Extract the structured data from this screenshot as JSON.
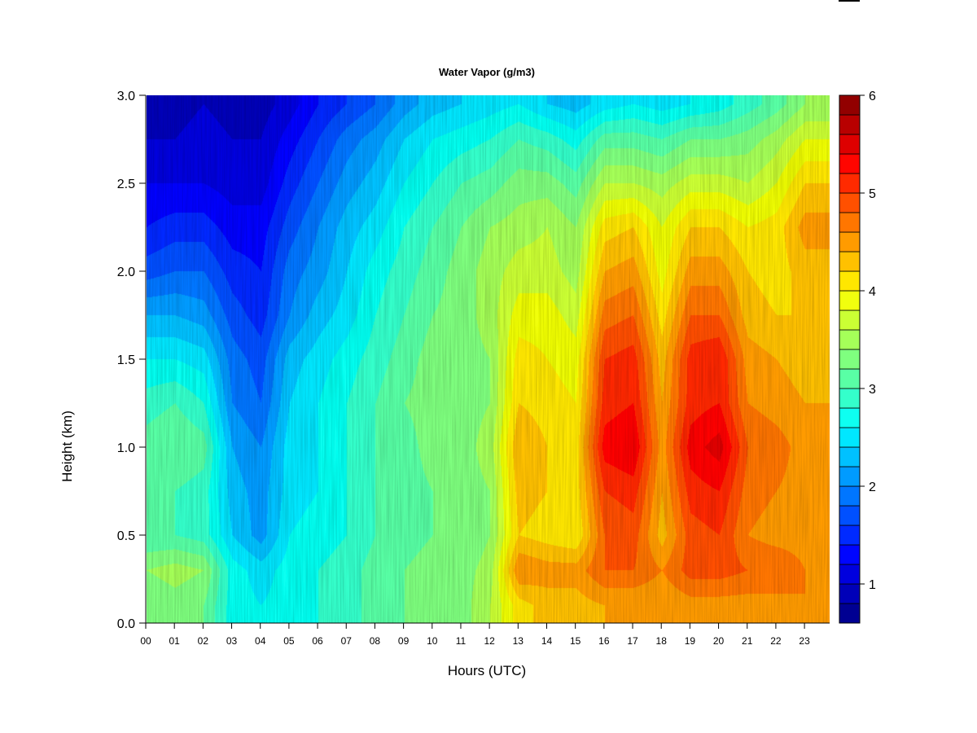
{
  "chart_data": {
    "type": "heatmap",
    "title": "Water Vapor (g/m3)",
    "xlabel": "Hours (UTC)",
    "ylabel": "Height (km)",
    "x_ticks": [
      "00",
      "01",
      "02",
      "03",
      "04",
      "05",
      "06",
      "07",
      "08",
      "09",
      "10",
      "11",
      "12",
      "13",
      "14",
      "15",
      "16",
      "17",
      "18",
      "19",
      "20",
      "21",
      "22",
      "23"
    ],
    "x_range": [
      0,
      23.85
    ],
    "y_ticks": [
      "0.0",
      "0.5",
      "1.0",
      "1.5",
      "2.0",
      "2.5",
      "3.0"
    ],
    "y_range": [
      0,
      3.0
    ],
    "colorbar": {
      "ticks": [
        "1",
        "2",
        "3",
        "4",
        "5",
        "6"
      ],
      "range": [
        0.6,
        6.0
      ],
      "levels": 27,
      "colormap": [
        "#00007f",
        "#0000ff",
        "#007fff",
        "#00ffff",
        "#7fff7f",
        "#ffff00",
        "#ff7f00",
        "#ff0000",
        "#7f0000"
      ]
    },
    "grid": false,
    "height_levels_km": [
      0.1,
      0.3,
      0.5,
      0.75,
      1.0,
      1.25,
      1.5,
      1.75,
      2.0,
      2.25,
      2.5,
      2.75,
      2.95
    ],
    "hours_utc": [
      0,
      1,
      2,
      3,
      4,
      5,
      6,
      7,
      8,
      9,
      10,
      11,
      12,
      13,
      14,
      15,
      16,
      17,
      18,
      19,
      20,
      21,
      22,
      23
    ],
    "water_vapor_g_m3": [
      [
        3.2,
        3.3,
        3.2,
        2.7,
        2.6,
        2.7,
        2.8,
        2.9,
        3.1,
        3.2,
        3.3,
        3.3,
        3.6,
        4.1,
        4.3,
        4.3,
        4.4,
        4.4,
        4.4,
        4.5,
        4.5,
        4.5,
        4.5,
        4.6
      ],
      [
        3.4,
        3.5,
        3.4,
        2.7,
        2.5,
        2.7,
        2.8,
        2.9,
        3.1,
        3.2,
        3.3,
        3.3,
        3.5,
        4.6,
        4.5,
        4.5,
        4.8,
        4.8,
        4.6,
        4.9,
        4.9,
        4.8,
        4.8,
        4.6
      ],
      [
        3.0,
        3.0,
        2.9,
        2.4,
        2.1,
        2.6,
        2.7,
        2.8,
        3.0,
        3.1,
        3.2,
        3.2,
        3.4,
        4.2,
        4.1,
        4.0,
        4.8,
        4.9,
        4.3,
        4.9,
        5.0,
        4.6,
        4.5,
        4.5
      ],
      [
        3.0,
        3.0,
        2.9,
        2.3,
        2.1,
        2.5,
        2.6,
        2.8,
        3.0,
        3.1,
        3.2,
        3.3,
        3.4,
        4.3,
        4.2,
        4.1,
        5.0,
        5.1,
        4.4,
        5.1,
        5.2,
        4.7,
        4.6,
        4.5
      ],
      [
        3.1,
        3.2,
        3.1,
        2.2,
        2.0,
        2.5,
        2.6,
        2.8,
        3.0,
        3.1,
        3.3,
        3.3,
        3.5,
        4.4,
        4.2,
        4.1,
        5.3,
        5.4,
        4.5,
        5.3,
        5.5,
        4.8,
        4.7,
        4.5
      ],
      [
        2.9,
        3.0,
        2.8,
        2.0,
        1.8,
        2.4,
        2.6,
        2.8,
        3.0,
        3.2,
        3.3,
        3.3,
        3.4,
        4.2,
        4.1,
        4.0,
        5.1,
        5.2,
        4.4,
        5.1,
        5.2,
        4.6,
        4.5,
        4.4
      ],
      [
        2.6,
        2.6,
        2.5,
        1.9,
        1.7,
        2.3,
        2.5,
        2.7,
        2.9,
        3.1,
        3.3,
        3.3,
        3.4,
        4.1,
        4.0,
        3.9,
        5.0,
        5.1,
        4.3,
        5.1,
        5.2,
        4.5,
        4.4,
        4.3
      ],
      [
        2.2,
        2.2,
        2.1,
        1.7,
        1.5,
        2.0,
        2.3,
        2.5,
        2.8,
        3.0,
        3.2,
        3.3,
        3.5,
        3.9,
        3.9,
        3.7,
        4.7,
        4.8,
        4.1,
        4.8,
        4.8,
        4.3,
        4.2,
        4.2
      ],
      [
        1.7,
        1.8,
        1.8,
        1.5,
        1.4,
        1.9,
        2.1,
        2.4,
        2.7,
        2.9,
        3.1,
        3.3,
        3.5,
        3.7,
        3.7,
        3.5,
        4.4,
        4.5,
        3.9,
        4.5,
        4.5,
        4.2,
        4.1,
        4.3
      ],
      [
        1.4,
        1.5,
        1.5,
        1.3,
        1.3,
        1.7,
        2.0,
        2.3,
        2.5,
        2.8,
        3.0,
        3.2,
        3.4,
        3.5,
        3.6,
        3.4,
        4.1,
        4.2,
        3.8,
        4.2,
        4.2,
        4.0,
        4.1,
        4.5
      ],
      [
        1.2,
        1.2,
        1.2,
        1.1,
        1.1,
        1.5,
        1.8,
        2.1,
        2.3,
        2.6,
        2.8,
        3.0,
        3.1,
        3.3,
        3.3,
        3.1,
        3.6,
        3.6,
        3.5,
        3.7,
        3.7,
        3.6,
        3.8,
        4.2
      ],
      [
        1.0,
        1.0,
        1.1,
        1.0,
        1.0,
        1.3,
        1.6,
        1.9,
        2.1,
        2.4,
        2.6,
        2.7,
        2.8,
        3.0,
        2.9,
        2.7,
        3.1,
        3.1,
        3.0,
        3.2,
        3.2,
        3.3,
        3.5,
        3.8
      ],
      [
        0.9,
        0.9,
        1.0,
        0.9,
        0.9,
        1.1,
        1.4,
        1.6,
        1.8,
        2.1,
        2.3,
        2.4,
        2.5,
        2.6,
        2.4,
        2.3,
        2.5,
        2.6,
        2.5,
        2.6,
        2.7,
        2.9,
        3.1,
        3.4
      ]
    ]
  }
}
